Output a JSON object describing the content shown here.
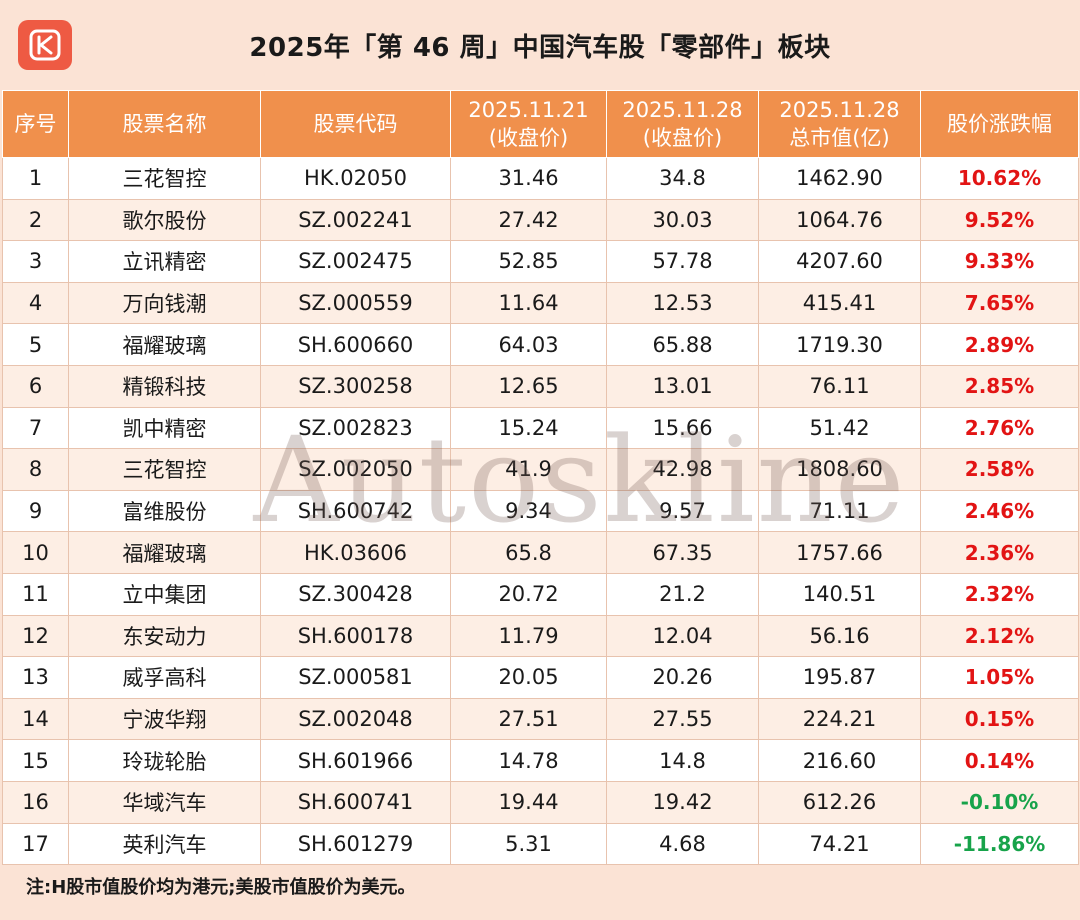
{
  "header": {
    "title": "2025年「第 46 周」中国汽车股「零部件」板块",
    "logo_letter": "K",
    "logo_color": "#ee5a43"
  },
  "table": {
    "columns": [
      {
        "line1": "序号",
        "line2": ""
      },
      {
        "line1": "股票名称",
        "line2": ""
      },
      {
        "line1": "股票代码",
        "line2": ""
      },
      {
        "line1": "2025.11.21",
        "line2": "(收盘价)"
      },
      {
        "line1": "2025.11.28",
        "line2": "(收盘价)"
      },
      {
        "line1": "2025.11.28",
        "line2": "总市值(亿)"
      },
      {
        "line1": "股价涨跌幅",
        "line2": ""
      }
    ],
    "rows": [
      {
        "no": "1",
        "name": "三花智控",
        "code": "HK.02050",
        "close_1121": "31.46",
        "close_1128": "34.8",
        "mktcap": "1462.90",
        "change": "10.62%",
        "dir": "up"
      },
      {
        "no": "2",
        "name": "歌尔股份",
        "code": "SZ.002241",
        "close_1121": "27.42",
        "close_1128": "30.03",
        "mktcap": "1064.76",
        "change": "9.52%",
        "dir": "up"
      },
      {
        "no": "3",
        "name": "立讯精密",
        "code": "SZ.002475",
        "close_1121": "52.85",
        "close_1128": "57.78",
        "mktcap": "4207.60",
        "change": "9.33%",
        "dir": "up"
      },
      {
        "no": "4",
        "name": "万向钱潮",
        "code": "SZ.000559",
        "close_1121": "11.64",
        "close_1128": "12.53",
        "mktcap": "415.41",
        "change": "7.65%",
        "dir": "up"
      },
      {
        "no": "5",
        "name": "福耀玻璃",
        "code": "SH.600660",
        "close_1121": "64.03",
        "close_1128": "65.88",
        "mktcap": "1719.30",
        "change": "2.89%",
        "dir": "up"
      },
      {
        "no": "6",
        "name": "精锻科技",
        "code": "SZ.300258",
        "close_1121": "12.65",
        "close_1128": "13.01",
        "mktcap": "76.11",
        "change": "2.85%",
        "dir": "up"
      },
      {
        "no": "7",
        "name": "凯中精密",
        "code": "SZ.002823",
        "close_1121": "15.24",
        "close_1128": "15.66",
        "mktcap": "51.42",
        "change": "2.76%",
        "dir": "up"
      },
      {
        "no": "8",
        "name": "三花智控",
        "code": "SZ.002050",
        "close_1121": "41.9",
        "close_1128": "42.98",
        "mktcap": "1808.60",
        "change": "2.58%",
        "dir": "up"
      },
      {
        "no": "9",
        "name": "富维股份",
        "code": "SH.600742",
        "close_1121": "9.34",
        "close_1128": "9.57",
        "mktcap": "71.11",
        "change": "2.46%",
        "dir": "up"
      },
      {
        "no": "10",
        "name": "福耀玻璃",
        "code": "HK.03606",
        "close_1121": "65.8",
        "close_1128": "67.35",
        "mktcap": "1757.66",
        "change": "2.36%",
        "dir": "up"
      },
      {
        "no": "11",
        "name": "立中集团",
        "code": "SZ.300428",
        "close_1121": "20.72",
        "close_1128": "21.2",
        "mktcap": "140.51",
        "change": "2.32%",
        "dir": "up"
      },
      {
        "no": "12",
        "name": "东安动力",
        "code": "SH.600178",
        "close_1121": "11.79",
        "close_1128": "12.04",
        "mktcap": "56.16",
        "change": "2.12%",
        "dir": "up"
      },
      {
        "no": "13",
        "name": "威孚高科",
        "code": "SZ.000581",
        "close_1121": "20.05",
        "close_1128": "20.26",
        "mktcap": "195.87",
        "change": "1.05%",
        "dir": "up"
      },
      {
        "no": "14",
        "name": "宁波华翔",
        "code": "SZ.002048",
        "close_1121": "27.51",
        "close_1128": "27.55",
        "mktcap": "224.21",
        "change": "0.15%",
        "dir": "up"
      },
      {
        "no": "15",
        "name": "玲珑轮胎",
        "code": "SH.601966",
        "close_1121": "14.78",
        "close_1128": "14.8",
        "mktcap": "216.60",
        "change": "0.14%",
        "dir": "up"
      },
      {
        "no": "16",
        "name": "华域汽车",
        "code": "SH.600741",
        "close_1121": "19.44",
        "close_1128": "19.42",
        "mktcap": "612.26",
        "change": "-0.10%",
        "dir": "down"
      },
      {
        "no": "17",
        "name": "英利汽车",
        "code": "SH.601279",
        "close_1121": "5.31",
        "close_1128": "4.68",
        "mktcap": "74.21",
        "change": "-11.86%",
        "dir": "down"
      }
    ]
  },
  "watermark": "Autoskline",
  "footnote": "注:H股市值股价均为港元;美股市值股价为美元。",
  "colors": {
    "header_bg": "#f0904c",
    "page_bg": "#fbe3d5",
    "up": "#e21414",
    "down": "#17a34a"
  }
}
